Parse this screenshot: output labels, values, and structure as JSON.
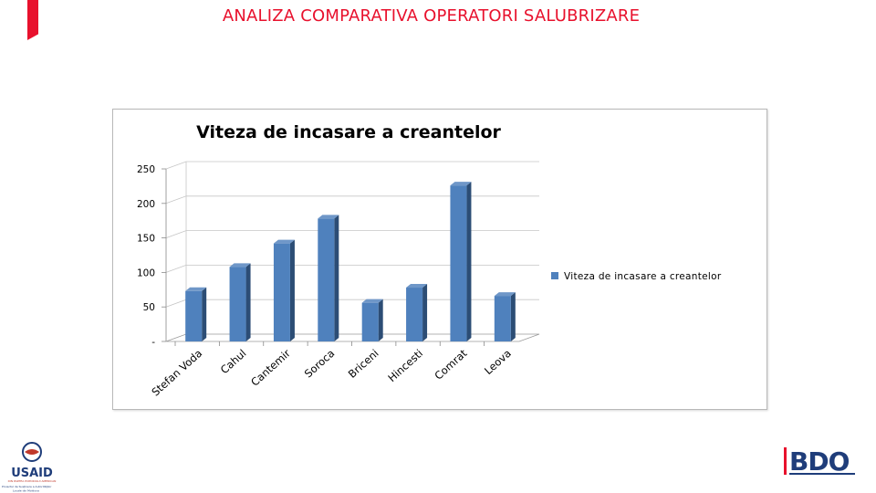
{
  "page": {
    "title": "ANALIZA COMPARATIVA OPERATORI SALUBRIZARE"
  },
  "logos": {
    "usaid": "USAID",
    "usaid_sub1": "DIN PARTEA POPORULUI AMERICAN",
    "usaid_sub2": "Proiectul de Susţinere a Autorităţilor",
    "usaid_sub3": "Locale din Moldova",
    "bdo": "BDO"
  },
  "colors": {
    "accent": "#e8112d",
    "bar_front": "#4f81bd",
    "bar_side": "#2c4d75",
    "bar_top": "#6f97c8"
  },
  "chart_data": {
    "type": "bar",
    "title": "Viteza de incasare a creantelor",
    "categories": [
      "Stefan Voda",
      "Cahul",
      "Cantemir",
      "Soroca",
      "Briceni",
      "Hincesti",
      "Comrat",
      "Leova"
    ],
    "series": [
      {
        "name": "Viteza de incasare a creantelor",
        "values": [
          73,
          108,
          142,
          178,
          56,
          78,
          226,
          66
        ]
      }
    ],
    "yticks": [
      "-",
      "50",
      "100",
      "150",
      "200",
      "250"
    ],
    "ylim": [
      0,
      250
    ],
    "grid": true,
    "legend_position": "right",
    "style": "3d-column"
  }
}
